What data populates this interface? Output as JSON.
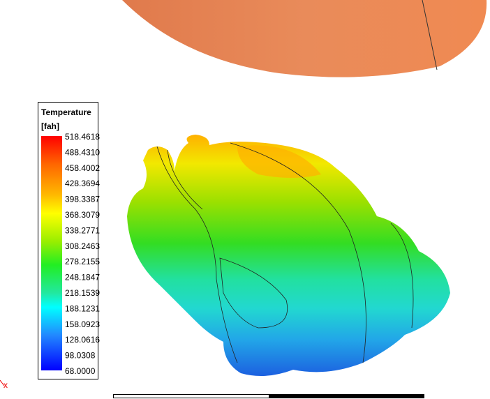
{
  "legend": {
    "title": "Temperature",
    "unit": "[fah]",
    "labels": [
      "518.4618",
      "488.4310",
      "458.4002",
      "428.3694",
      "398.3387",
      "368.3079",
      "338.2771",
      "308.2463",
      "278.2155",
      "248.1847",
      "218.1539",
      "188.1231",
      "158.0923",
      "128.0616",
      "98.0308",
      "68.0000"
    ]
  },
  "axis": {
    "label": "x"
  }
}
